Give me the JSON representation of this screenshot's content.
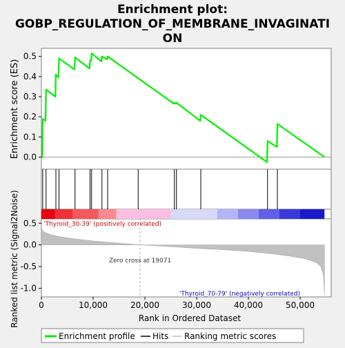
{
  "chart_data": {
    "type": "line",
    "title": "Enrichment plot: GOBP_REGULATION_OF_MEMBRANE_INVAGINATION",
    "title_lines": [
      "Enrichment plot:",
      "GOBP_REGULATION_OF_MEMBRANE_INVAGINATI",
      "ON"
    ],
    "xlabel": "Rank in Ordered Dataset",
    "es_panel": {
      "ylabel": "Enrichment score (ES)",
      "ylim": [
        -0.06,
        0.54
      ],
      "yticks": [
        0.0,
        0.1,
        0.2,
        0.3,
        0.4,
        0.5
      ],
      "ytick_labels": [
        "0.0",
        "0.1",
        "0.2",
        "0.3",
        "0.4",
        "0.5"
      ],
      "series": {
        "name": "Enrichment profile",
        "color": "#00ee00",
        "x": [
          0,
          200,
          250,
          800,
          900,
          2700,
          2800,
          3300,
          3400,
          6400,
          6500,
          9300,
          9400,
          9600,
          9700,
          11600,
          11700,
          12700,
          12800,
          25600,
          25700,
          26000,
          26100,
          30700,
          30800,
          43600,
          43700,
          45500,
          45600,
          54700
        ],
        "y": [
          0.0,
          0.0,
          0.19,
          0.18,
          0.335,
          0.3,
          0.41,
          0.395,
          0.49,
          0.435,
          0.495,
          0.44,
          0.48,
          0.48,
          0.515,
          0.475,
          0.5,
          0.485,
          0.5,
          0.265,
          0.27,
          0.265,
          0.27,
          0.18,
          0.21,
          -0.025,
          0.08,
          0.05,
          0.165,
          0.0
        ]
      }
    },
    "hits": {
      "name": "Hits",
      "positions": [
        250,
        900,
        2800,
        3400,
        6500,
        9400,
        9700,
        11700,
        12800,
        18700,
        25700,
        26100,
        30800,
        43700,
        45600
      ]
    },
    "metric_panel": {
      "ylabel": "Ranked list metric (Signal2Noise)",
      "ylim": [
        -1.2,
        0.6
      ],
      "yticks": [
        0.5,
        0.0,
        -0.5,
        -1.0
      ],
      "ytick_labels": [
        "0.5",
        "0.0",
        "-0.5",
        "-1.0"
      ],
      "series_name": "Ranking metric scores",
      "zero_cross": 19071,
      "zero_cross_label": "Zero cross at 19071",
      "positive_label": "'Thyroid_30-39' (positively correlated)",
      "negative_label": "'Thyroid_70-79' (negatively correlated)",
      "curve_x": [
        0,
        200,
        500,
        1000,
        2000,
        4000,
        7000,
        10000,
        14000,
        19071,
        25000,
        30000,
        35000,
        40000,
        45000,
        48000,
        51000,
        53000,
        54000,
        54500,
        54700
      ],
      "curve_y": [
        0.42,
        0.33,
        0.3,
        0.27,
        0.23,
        0.18,
        0.13,
        0.09,
        0.05,
        0.0,
        -0.04,
        -0.08,
        -0.11,
        -0.15,
        -0.21,
        -0.26,
        -0.32,
        -0.4,
        -0.5,
        -0.7,
        -1.15
      ]
    },
    "xlim": [
      0,
      56000
    ],
    "xticks": [
      0,
      10000,
      20000,
      30000,
      40000,
      50000
    ],
    "xtick_labels": [
      "0",
      "10,000",
      "20,000",
      "30,000",
      "40,000",
      "50,000"
    ],
    "legend": {
      "placement": "bottom",
      "items": [
        {
          "label": "Enrichment profile",
          "color": "#00ee00"
        },
        {
          "label": "Hits",
          "color": "#000000"
        },
        {
          "label": "Ranking metric scores",
          "color": "#c0c0c0"
        }
      ]
    },
    "colorbar": {
      "stops": [
        {
          "from": 0,
          "to": 2600,
          "color": "#e8000c"
        },
        {
          "from": 2600,
          "to": 6000,
          "color": "#f03035"
        },
        {
          "from": 6000,
          "to": 11000,
          "color": "#f5585d"
        },
        {
          "from": 11000,
          "to": 14500,
          "color": "#fa8a8e"
        },
        {
          "from": 14500,
          "to": 25000,
          "color": "#fbbde0"
        },
        {
          "from": 25000,
          "to": 34000,
          "color": "#d8d8fb"
        },
        {
          "from": 34000,
          "to": 38000,
          "color": "#b4b4f8"
        },
        {
          "from": 38000,
          "to": 42000,
          "color": "#8a8af0"
        },
        {
          "from": 42000,
          "to": 46000,
          "color": "#6060e6"
        },
        {
          "from": 46000,
          "to": 50000,
          "color": "#3a3ad8"
        },
        {
          "from": 50000,
          "to": 54700,
          "color": "#1a1acc"
        }
      ]
    }
  }
}
